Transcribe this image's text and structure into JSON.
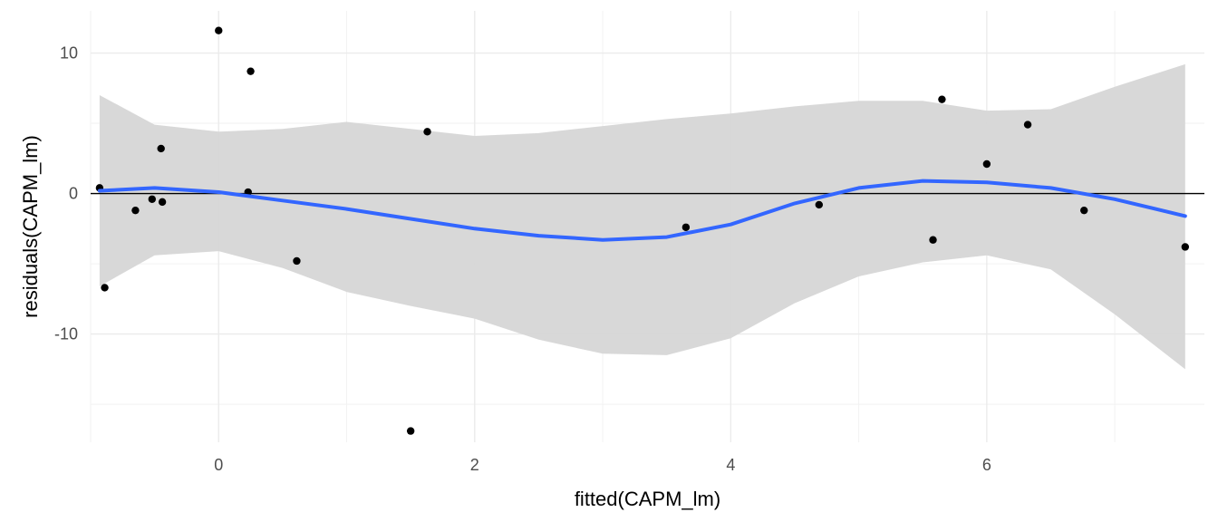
{
  "chart_data": {
    "type": "scatter",
    "title": "",
    "xlabel": "fitted(CAPM_lm)",
    "ylabel": "residuals(CAPM_lm)",
    "xlim": [
      -1.0,
      7.7
    ],
    "ylim": [
      -17.7,
      13.0
    ],
    "x_ticks": [
      0,
      2,
      4,
      6
    ],
    "x_tick_labels": [
      "0",
      "2",
      "4",
      "6"
    ],
    "y_ticks": [
      -10,
      0,
      10
    ],
    "y_tick_labels": [
      "-10",
      "0",
      "10"
    ],
    "grid": true,
    "legend": "none",
    "reference_line": {
      "y": 0,
      "color": "#000000"
    },
    "points": [
      {
        "x": -0.93,
        "y": 0.4
      },
      {
        "x": -0.89,
        "y": -6.7
      },
      {
        "x": -0.65,
        "y": -1.2
      },
      {
        "x": -0.52,
        "y": -0.4
      },
      {
        "x": -0.45,
        "y": 3.2
      },
      {
        "x": -0.44,
        "y": -0.6
      },
      {
        "x": 0.0,
        "y": 11.6
      },
      {
        "x": 0.23,
        "y": 0.1
      },
      {
        "x": 0.25,
        "y": 8.7
      },
      {
        "x": 0.61,
        "y": -4.8
      },
      {
        "x": 1.5,
        "y": -16.9
      },
      {
        "x": 1.63,
        "y": 4.4
      },
      {
        "x": 3.65,
        "y": -2.4
      },
      {
        "x": 4.69,
        "y": -0.8
      },
      {
        "x": 5.58,
        "y": -3.3
      },
      {
        "x": 5.65,
        "y": 6.7
      },
      {
        "x": 6.0,
        "y": 2.1
      },
      {
        "x": 6.32,
        "y": 4.9
      },
      {
        "x": 6.76,
        "y": -1.2
      },
      {
        "x": 7.55,
        "y": -3.8
      }
    ],
    "smooth": {
      "method": "loess",
      "color": "#3366FF",
      "ribbon_color": "#d6d6d6",
      "x": [
        -0.93,
        -0.5,
        0.0,
        0.5,
        1.0,
        1.5,
        2.0,
        2.5,
        3.0,
        3.5,
        4.0,
        4.5,
        5.0,
        5.5,
        6.0,
        6.5,
        7.0,
        7.55
      ],
      "y": [
        0.2,
        0.4,
        0.1,
        -0.5,
        -1.1,
        -1.8,
        -2.5,
        -3.0,
        -3.3,
        -3.1,
        -2.2,
        -0.7,
        0.4,
        0.9,
        0.8,
        0.4,
        -0.4,
        -1.6
      ],
      "lower": [
        -6.6,
        -4.4,
        -4.1,
        -5.3,
        -7.0,
        -8.0,
        -8.9,
        -10.4,
        -11.4,
        -11.5,
        -10.3,
        -7.8,
        -5.9,
        -4.9,
        -4.4,
        -5.4,
        -8.6,
        -12.5
      ],
      "upper": [
        7.0,
        4.9,
        4.4,
        4.6,
        5.1,
        4.6,
        4.1,
        4.3,
        4.8,
        5.3,
        5.7,
        6.2,
        6.6,
        6.6,
        5.9,
        6.0,
        7.6,
        9.2
      ]
    },
    "colors": {
      "point": "#000000",
      "grid_major": "#ebebeb",
      "grid_minor": "#f2f2f2",
      "tick_text": "#4d4d4d"
    }
  }
}
